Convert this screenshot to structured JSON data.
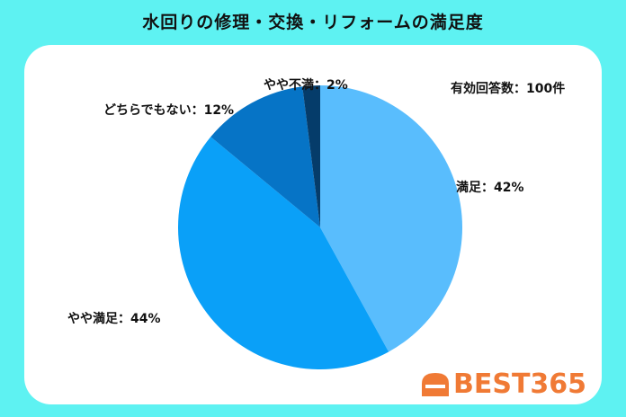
{
  "page": {
    "background": "#5ef2f2"
  },
  "chart_data": {
    "type": "pie",
    "title": "水回りの修理・交換・リフォームの満足度",
    "annotation": "有効回答数：100件",
    "slices": [
      {
        "label": "満足",
        "value": 42,
        "display": "満足：42%",
        "color": "#59bdfd"
      },
      {
        "label": "やや満足",
        "value": 44,
        "display": "やや満足：44%",
        "color": "#0aa0f8"
      },
      {
        "label": "どちらでもない",
        "value": 12,
        "display": "どちらでもない：12%",
        "color": "#0674c6"
      },
      {
        "label": "やや不満",
        "value": 2,
        "display": "やや不満：2%",
        "color": "#053c6a"
      }
    ]
  },
  "brand": {
    "logo_icon": "best365-logo-icon",
    "text": "BEST365",
    "color": "#f07a35"
  }
}
